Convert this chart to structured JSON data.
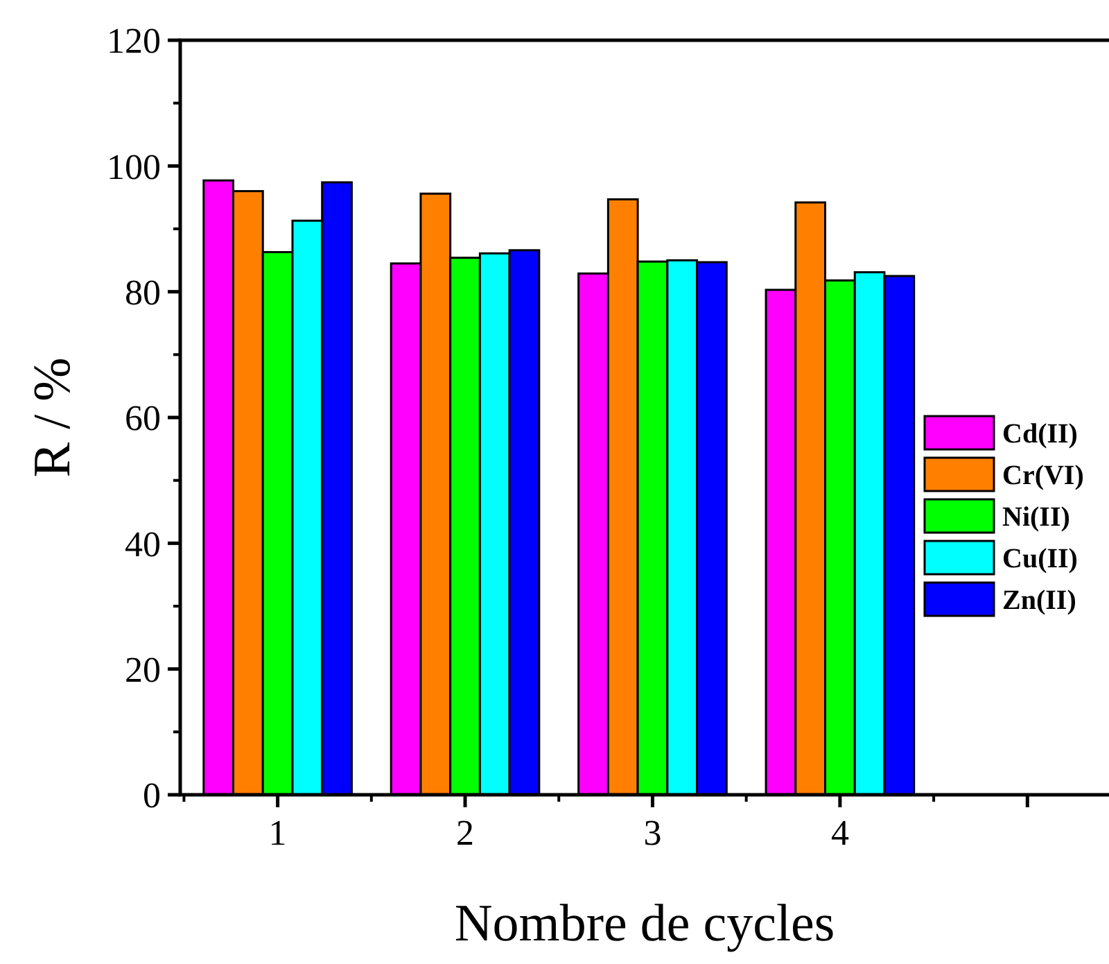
{
  "chart_data": {
    "type": "bar",
    "xlabel": "Nombre de cycles",
    "ylabel": "R / %",
    "categories": [
      "1",
      "2",
      "3",
      "4",
      null
    ],
    "ylim": [
      0,
      120
    ],
    "yticks": [
      0,
      20,
      40,
      60,
      80,
      100,
      120
    ],
    "grid": false,
    "legend": "right",
    "series": [
      {
        "name": "Cd(II)",
        "color": "#ff00ff",
        "values": [
          97.7,
          84.5,
          82.9,
          80.3,
          null
        ]
      },
      {
        "name": "Cr(VI)",
        "color": "#ff8000",
        "values": [
          96.0,
          95.6,
          94.7,
          94.2,
          null
        ]
      },
      {
        "name": "Ni(II)",
        "color": "#00ff00",
        "values": [
          86.3,
          85.4,
          84.8,
          81.8,
          null
        ]
      },
      {
        "name": "Cu(II)",
        "color": "#00ffff",
        "values": [
          91.3,
          86.1,
          85.0,
          83.1,
          null
        ]
      },
      {
        "name": "Zn(II)",
        "color": "#0000ff",
        "values": [
          97.4,
          86.6,
          84.7,
          82.5,
          null
        ]
      }
    ]
  }
}
